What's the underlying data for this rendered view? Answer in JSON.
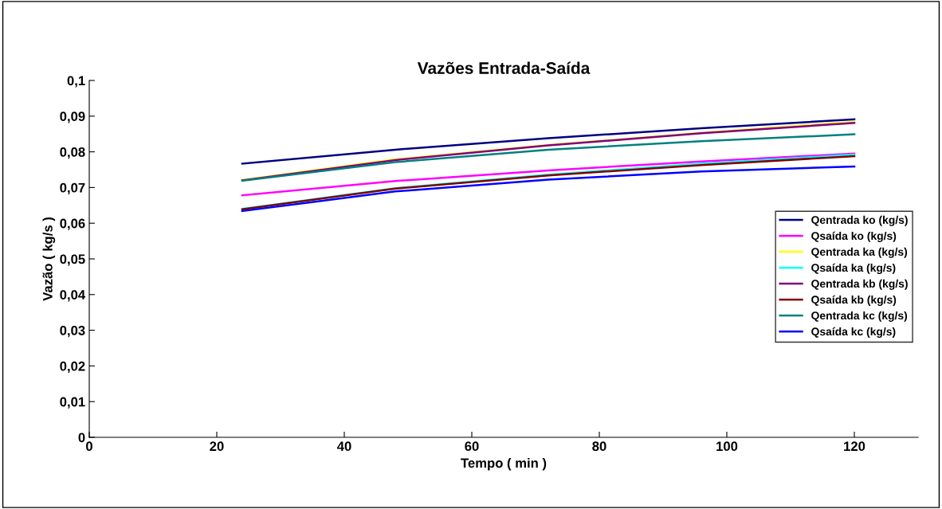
{
  "chart_data": {
    "type": "line",
    "title": "Vazões Entrada-Saída",
    "xlabel": "Tempo ( min )",
    "ylabel": "Vazão ( kg/s )",
    "x": [
      24,
      48,
      72,
      96,
      120
    ],
    "series": [
      {
        "name": "Qentrada ko (kg/s)",
        "color": "#000080",
        "values": [
          0.0767,
          0.0806,
          0.0838,
          0.0866,
          0.0891
        ]
      },
      {
        "name": "Qsaída ko (kg/s)",
        "color": "#ff00ff",
        "values": [
          0.0678,
          0.0718,
          0.0748,
          0.0773,
          0.0795
        ]
      },
      {
        "name": "Qentrada ka (kg/s)",
        "color": "#ffff00",
        "values": [
          0.0721,
          0.0779,
          0.0819,
          0.0853,
          0.0884
        ]
      },
      {
        "name": "Qsaída ka (kg/s)",
        "color": "#00ffff",
        "values": [
          0.064,
          0.0698,
          0.0736,
          0.0767,
          0.0792
        ]
      },
      {
        "name": "Qentrada kb (kg/s)",
        "color": "#800080",
        "values": [
          0.072,
          0.0777,
          0.0818,
          0.0852,
          0.0881
        ]
      },
      {
        "name": "Qsaída kb (kg/s)",
        "color": "#800000",
        "values": [
          0.0639,
          0.0697,
          0.0734,
          0.0763,
          0.0788
        ]
      },
      {
        "name": "Qentrada kc (kg/s)",
        "color": "#008080",
        "values": [
          0.0719,
          0.0771,
          0.0806,
          0.083,
          0.0849
        ]
      },
      {
        "name": "Qsaída kc (kg/s)",
        "color": "#0000ff",
        "values": [
          0.0634,
          0.0689,
          0.0722,
          0.0745,
          0.0759
        ]
      }
    ],
    "xlim": [
      0,
      130
    ],
    "xticks": [
      0,
      20,
      40,
      60,
      80,
      100,
      120
    ],
    "ylim": [
      0,
      0.1
    ],
    "yticks": [
      0,
      {
        "value": 0.01,
        "label": "0,01"
      },
      {
        "value": 0.02,
        "label": "0,02"
      },
      {
        "value": 0.03,
        "label": "0,03"
      },
      {
        "value": 0.04,
        "label": "0,04"
      },
      {
        "value": 0.05,
        "label": "0,05"
      },
      {
        "value": 0.06,
        "label": "0,06"
      },
      {
        "value": 0.07,
        "label": "0,07"
      },
      {
        "value": 0.08,
        "label": "0,08"
      },
      {
        "value": 0.09,
        "label": "0,09"
      },
      {
        "value": 0.1,
        "label": "0,1"
      }
    ],
    "legend": "right",
    "grid": false,
    "marker": "none",
    "line_style": "solid"
  }
}
